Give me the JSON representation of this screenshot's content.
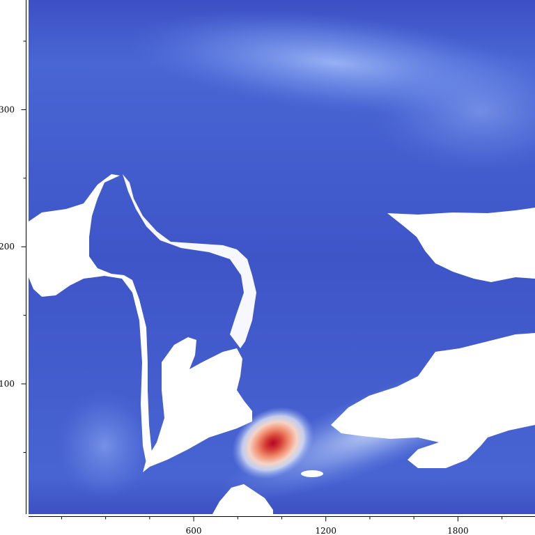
{
  "chart_data": {
    "type": "heatmap",
    "title": "",
    "xlabel": "",
    "ylabel": "",
    "xlim": [
      -150,
      2150
    ],
    "ylim": [
      5,
      380
    ],
    "x_ticks": [
      {
        "value": 600,
        "label": "600"
      },
      {
        "value": 1200,
        "label": "1200"
      },
      {
        "value": 1800,
        "label": "1800"
      }
    ],
    "y_ticks": [
      {
        "value": 100,
        "label": "100"
      },
      {
        "value": 200,
        "label": "200"
      },
      {
        "value": 300,
        "label": "300"
      }
    ],
    "x_minor_step": 200,
    "y_minor_step": 50,
    "colormap": {
      "low": "#3a4cc0",
      "mid": "#f1f1f1",
      "high": "#b40426"
    },
    "hotspots": [
      {
        "x": 1100,
        "y": 58,
        "intensity": 1.0
      },
      {
        "x": 1350,
        "y": 345,
        "intensity": 0.42
      },
      {
        "x": 1150,
        "y": 40,
        "intensity": 0.35
      }
    ],
    "masked_regions": 6,
    "grid": false,
    "legend": "none"
  }
}
